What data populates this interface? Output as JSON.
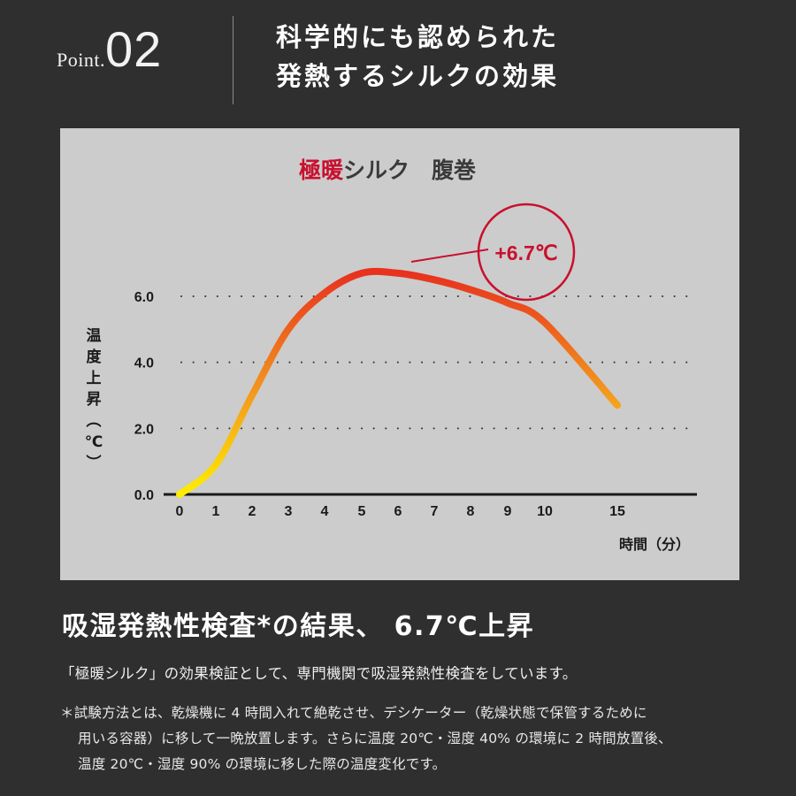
{
  "header": {
    "point_word": "Point.",
    "point_number": "02",
    "headline_line1": "科学的にも認められた",
    "headline_line2": "発熱するシルクの効果"
  },
  "chart_data": {
    "type": "line",
    "title_accent": "極暖",
    "title_rest": "シルク　腹巻",
    "ylabel": "温度上昇（℃）",
    "xlabel": "時間（分）",
    "ylim": [
      0,
      6.0
    ],
    "yticks": [
      "0.0",
      "2.0",
      "4.0",
      "6.0"
    ],
    "xticks": [
      "0",
      "1",
      "2",
      "3",
      "4",
      "5",
      "6",
      "7",
      "8",
      "9",
      "10",
      "15"
    ],
    "grid": true,
    "series": [
      {
        "x": [
          0,
          1,
          2,
          3,
          4,
          5,
          6,
          7,
          8,
          9,
          10,
          15
        ],
        "y": [
          0.0,
          0.9,
          3.0,
          5.0,
          6.1,
          6.7,
          6.7,
          6.5,
          6.2,
          5.8,
          5.2,
          2.7
        ]
      }
    ],
    "annotation": "+6.7℃",
    "colors": {
      "line_start": "#ffee00",
      "line_mid": "#f39a1e",
      "line_peak": "#e8321e",
      "accent": "#c8102e",
      "axis": "#1a1a1a"
    }
  },
  "result": {
    "heading": "吸湿発熱性検査*の結果、 6.7℃上昇",
    "description": "「極暖シルク」の効果検証として、専門機関で吸湿発熱性検査をしています。",
    "note_line1": "＊試験方法とは、乾燥機に 4 時間入れて絶乾させ、デシケーター（乾燥状態で保管するために",
    "note_line2": "用いる容器）に移して一晩放置します。さらに温度 20℃・湿度 40% の環境に 2 時間放置後、",
    "note_line3": "温度 20℃・湿度 90% の環境に移した際の温度変化です。"
  }
}
